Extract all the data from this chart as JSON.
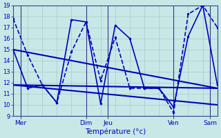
{
  "background_color": "#c8e8e8",
  "grid_color": "#aacccc",
  "line_color": "#0000bb",
  "xlabel": "Température (°c)",
  "ylim": [
    9,
    19
  ],
  "yticks": [
    9,
    10,
    11,
    12,
    13,
    14,
    15,
    16,
    17,
    18,
    19
  ],
  "xlim": [
    0,
    28
  ],
  "x_ticks": [
    1,
    10,
    13,
    22,
    27
  ],
  "x_labels": [
    "Mer",
    "Dim",
    "Jeu",
    "Ven",
    "Sam"
  ],
  "vlines": [
    1,
    10,
    13,
    22,
    27
  ],
  "series": [
    {
      "x": [
        0,
        2,
        4,
        6,
        8,
        10,
        12,
        14,
        16,
        18,
        20,
        22,
        24,
        26,
        28
      ],
      "y": [
        17.8,
        14.5,
        11.8,
        10.2,
        14.8,
        17.5,
        12.2,
        16.1,
        11.5,
        11.5,
        11.5,
        9.3,
        18.2,
        19.0,
        17.0
      ],
      "ls": "--",
      "lw": 1.2,
      "marker": "o",
      "ms": 2.0
    },
    {
      "x": [
        0,
        2,
        4,
        6,
        8,
        10,
        12,
        14,
        16,
        18,
        20,
        22,
        24,
        26,
        28
      ],
      "y": [
        15.0,
        11.5,
        11.8,
        10.2,
        17.7,
        17.5,
        10.1,
        17.2,
        16.0,
        11.5,
        11.5,
        9.8,
        16.2,
        19.0,
        11.8
      ],
      "ls": "-",
      "lw": 1.2,
      "marker": "o",
      "ms": 2.0
    },
    {
      "x": [
        0,
        28
      ],
      "y": [
        15.0,
        11.5
      ],
      "ls": "-",
      "lw": 1.5,
      "marker": null,
      "ms": 0
    },
    {
      "x": [
        0,
        28
      ],
      "y": [
        11.8,
        10.0
      ],
      "ls": "-",
      "lw": 1.5,
      "marker": null,
      "ms": 0
    },
    {
      "x": [
        0,
        28
      ],
      "y": [
        11.8,
        11.5
      ],
      "ls": "-",
      "lw": 1.5,
      "marker": null,
      "ms": 0
    }
  ]
}
